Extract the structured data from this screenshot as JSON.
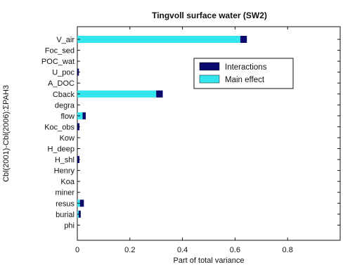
{
  "chart_data": {
    "type": "bar",
    "orientation": "horizontal",
    "stacked": true,
    "title": "Tingvoll surface water (SW2)",
    "xlabel": "Part of total variance",
    "ylabel": "Cbl(2001)-Cbl(2006):ΣPAH3",
    "xlim": [
      0,
      1
    ],
    "xticks": [
      0,
      0.2,
      0.4,
      0.6,
      0.8
    ],
    "grid": false,
    "legend_position": "top-right",
    "categories": [
      "V_air",
      "Foc_sed",
      "POC_wat",
      "U_poc",
      "A_DOC",
      "Cback",
      "degra",
      "flow",
      "Koc_obs",
      "Kow",
      "H_deep",
      "H_shl",
      "Henry",
      "Koa",
      "miner",
      "resus",
      "burial",
      "phi"
    ],
    "series": [
      {
        "name": "Main effect",
        "color": "#33e6ee",
        "values": [
          0.62,
          0,
          0,
          0,
          0,
          0.3,
          0,
          0.02,
          0,
          0,
          0,
          0,
          0,
          0,
          0,
          0.01,
          0.005,
          0
        ]
      },
      {
        "name": "Interactions",
        "color": "#0a0a6e",
        "values": [
          0.025,
          0,
          0,
          0.006,
          0,
          0.025,
          0,
          0.012,
          0.008,
          0,
          0,
          0.008,
          0,
          0,
          0,
          0.015,
          0.008,
          0
        ]
      }
    ]
  }
}
